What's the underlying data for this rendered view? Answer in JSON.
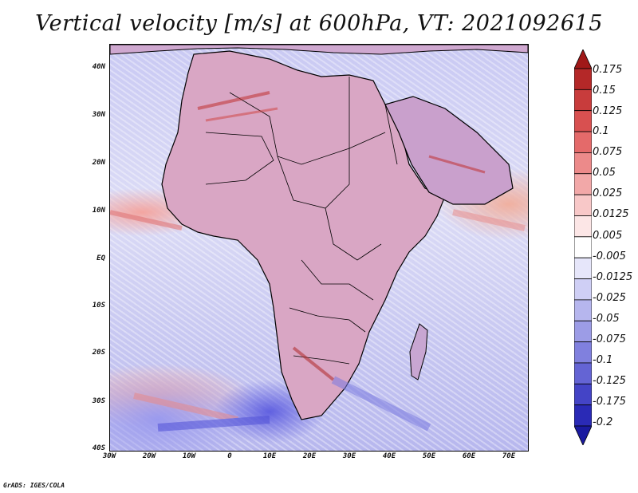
{
  "title": "Vertical velocity [m/s] at 600hPa, VT: 2021092615",
  "y_axis_ticks": [
    "40N",
    "30N",
    "20N",
    "10N",
    "EQ",
    "10S",
    "20S",
    "30S",
    "40S"
  ],
  "x_axis_ticks": [
    "30W",
    "20W",
    "10W",
    "0",
    "10E",
    "20E",
    "30E",
    "40E",
    "50E",
    "60E",
    "70E"
  ],
  "colorbar": {
    "labels": [
      "0.175",
      "0.15",
      "0.125",
      "0.1",
      "0.075",
      "0.05",
      "0.025",
      "0.0125",
      "0.005",
      "-0.005",
      "-0.0125",
      "-0.025",
      "-0.05",
      "-0.075",
      "-0.1",
      "-0.125",
      "-0.175",
      "-0.2"
    ],
    "colors": [
      "#a01818",
      "#b42828",
      "#c83c3c",
      "#d85050",
      "#e46a6a",
      "#ec8a8a",
      "#f2a8a8",
      "#f8c8c8",
      "#fce6e6",
      "#ffffff",
      "#e6e6fa",
      "#cfcff5",
      "#b6b6ee",
      "#9c9ce6",
      "#8080de",
      "#6464d4",
      "#4444c6",
      "#2a2ab6",
      "#1a1aa0"
    ]
  },
  "credit": "GrADS: IGES/COLA"
}
